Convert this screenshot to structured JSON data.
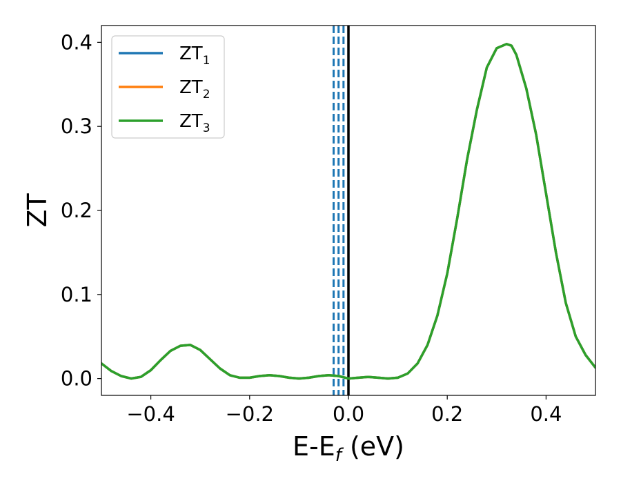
{
  "chart_data": {
    "type": "line",
    "title": "",
    "xlabel": {
      "main": "E-E",
      "sub": "f",
      "suffix": " (eV)"
    },
    "ylabel": "ZT",
    "xlim": [
      -0.5,
      0.5
    ],
    "ylim": [
      -0.02,
      0.42
    ],
    "xticks": [
      -0.4,
      -0.2,
      0.0,
      0.2,
      0.4
    ],
    "xtick_labels": [
      "−0.4",
      "−0.2",
      "0.0",
      "0.2",
      "0.4"
    ],
    "yticks": [
      0.0,
      0.1,
      0.2,
      0.3,
      0.4
    ],
    "ytick_labels": [
      "0.0",
      "0.1",
      "0.2",
      "0.3",
      "0.4"
    ],
    "grid": false,
    "legend_position": "top-left",
    "x": [
      -0.5,
      -0.48,
      -0.46,
      -0.44,
      -0.42,
      -0.4,
      -0.38,
      -0.36,
      -0.34,
      -0.32,
      -0.3,
      -0.28,
      -0.26,
      -0.24,
      -0.22,
      -0.2,
      -0.18,
      -0.16,
      -0.14,
      -0.12,
      -0.1,
      -0.08,
      -0.06,
      -0.04,
      -0.02,
      0.0,
      0.02,
      0.04,
      0.06,
      0.08,
      0.1,
      0.12,
      0.14,
      0.16,
      0.18,
      0.2,
      0.22,
      0.24,
      0.26,
      0.28,
      0.3,
      0.32,
      0.33,
      0.34,
      0.36,
      0.38,
      0.4,
      0.42,
      0.44,
      0.46,
      0.48,
      0.5
    ],
    "series": [
      {
        "name": {
          "main": "ZT",
          "sub": "1"
        },
        "color": "#1f77b4",
        "values": [
          0.018,
          0.009,
          0.003,
          0.0,
          0.002,
          0.01,
          0.022,
          0.033,
          0.039,
          0.04,
          0.034,
          0.023,
          0.012,
          0.004,
          0.001,
          0.001,
          0.003,
          0.004,
          0.003,
          0.001,
          0.0,
          0.001,
          0.003,
          0.004,
          0.003,
          0.0,
          0.001,
          0.002,
          0.001,
          0.0,
          0.001,
          0.006,
          0.018,
          0.04,
          0.075,
          0.125,
          0.19,
          0.26,
          0.32,
          0.37,
          0.393,
          0.398,
          0.396,
          0.385,
          0.345,
          0.29,
          0.22,
          0.15,
          0.09,
          0.05,
          0.028,
          0.013
        ]
      },
      {
        "name": {
          "main": "ZT",
          "sub": "2"
        },
        "color": "#ff7f0e",
        "values": [
          0.018,
          0.009,
          0.003,
          0.0,
          0.002,
          0.01,
          0.022,
          0.033,
          0.039,
          0.04,
          0.034,
          0.023,
          0.012,
          0.004,
          0.001,
          0.001,
          0.003,
          0.004,
          0.003,
          0.001,
          0.0,
          0.001,
          0.003,
          0.004,
          0.003,
          0.0,
          0.001,
          0.002,
          0.001,
          0.0,
          0.001,
          0.006,
          0.018,
          0.04,
          0.075,
          0.125,
          0.19,
          0.26,
          0.32,
          0.37,
          0.393,
          0.398,
          0.396,
          0.385,
          0.345,
          0.29,
          0.22,
          0.15,
          0.09,
          0.05,
          0.028,
          0.013
        ]
      },
      {
        "name": {
          "main": "ZT",
          "sub": "3"
        },
        "color": "#2ca02c",
        "values": [
          0.018,
          0.009,
          0.003,
          0.0,
          0.002,
          0.01,
          0.022,
          0.033,
          0.039,
          0.04,
          0.034,
          0.023,
          0.012,
          0.004,
          0.001,
          0.001,
          0.003,
          0.004,
          0.003,
          0.001,
          0.0,
          0.001,
          0.003,
          0.004,
          0.003,
          0.0,
          0.001,
          0.002,
          0.001,
          0.0,
          0.001,
          0.006,
          0.018,
          0.04,
          0.075,
          0.125,
          0.19,
          0.26,
          0.32,
          0.37,
          0.393,
          0.398,
          0.396,
          0.385,
          0.345,
          0.29,
          0.22,
          0.15,
          0.09,
          0.05,
          0.028,
          0.013
        ]
      }
    ],
    "vertical_lines": [
      {
        "x": -0.03,
        "style": "dashed",
        "color": "#1f77b4"
      },
      {
        "x": -0.02,
        "style": "dashed",
        "color": "#1f77b4"
      },
      {
        "x": -0.01,
        "style": "dashed",
        "color": "#1f77b4"
      },
      {
        "x": 0.0,
        "style": "solid",
        "color": "#000000"
      }
    ]
  }
}
